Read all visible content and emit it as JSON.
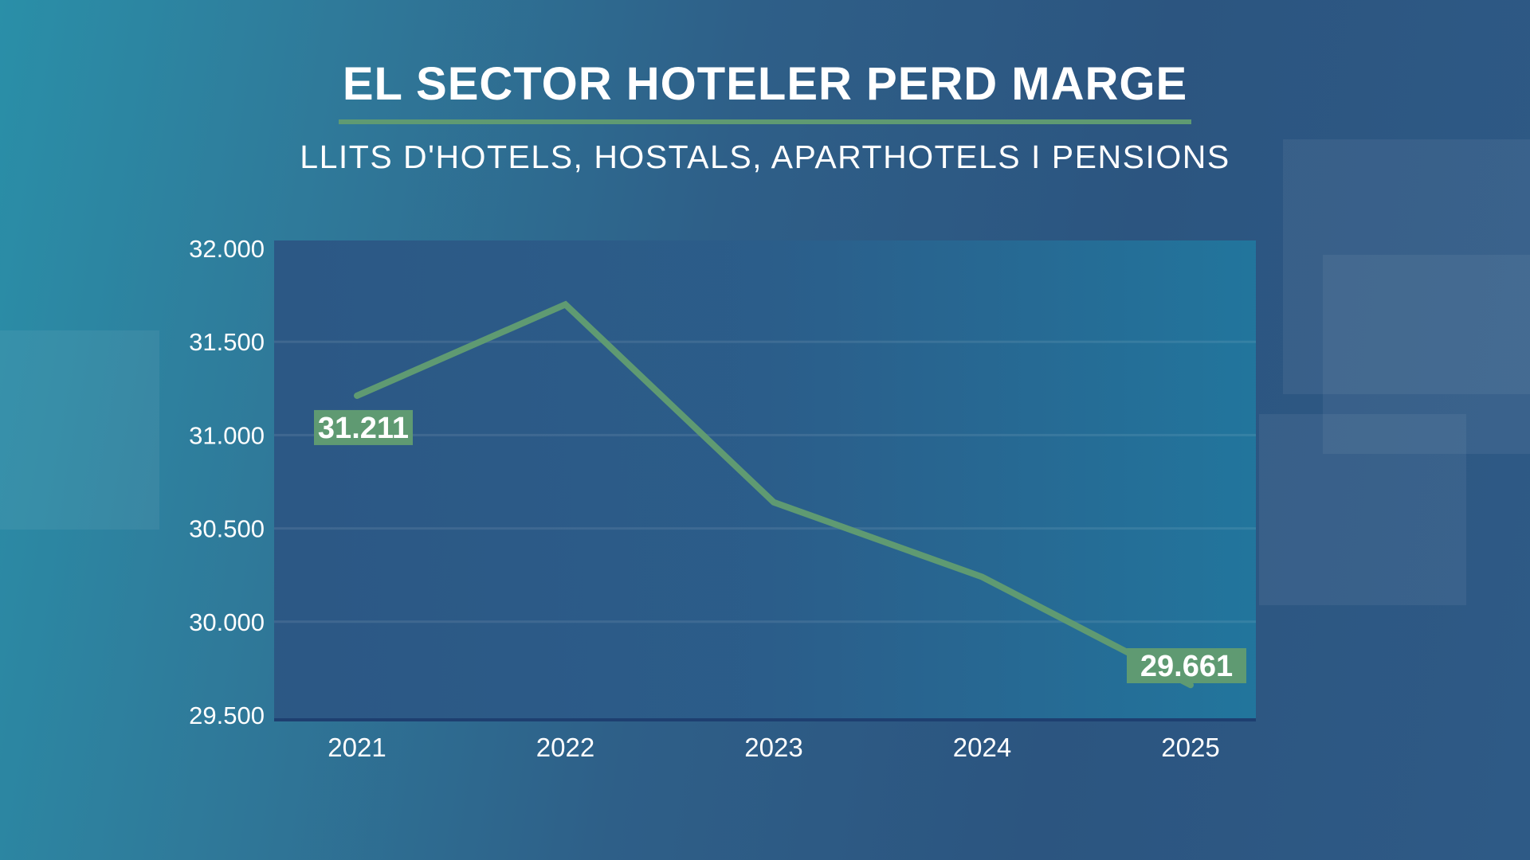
{
  "title": "EL SECTOR HOTELER PERD MARGE",
  "subtitle": "LLITS D'HOTELS, HOSTALS, APARTHOTELS I PENSIONS",
  "colors": {
    "line": "#5f9a72",
    "label_bg": "#5f9a72",
    "plot_bg": "#2a5a88"
  },
  "chart_data": {
    "type": "line",
    "title": "EL SECTOR HOTELER PERD MARGE",
    "subtitle": "LLITS D'HOTELS, HOSTALS, APARTHOTELS I PENSIONS",
    "categories": [
      "2021",
      "2022",
      "2023",
      "2024",
      "2025"
    ],
    "values": [
      31211,
      31700,
      30640,
      30240,
      29661
    ],
    "ylim": [
      29500,
      32000
    ],
    "yticks": [
      32000,
      31500,
      31000,
      30500,
      30000,
      29500
    ],
    "ytick_labels": [
      "32.000",
      "31.500",
      "31.000",
      "30.500",
      "30.000",
      "29.500"
    ],
    "data_labels": [
      {
        "category": "2021",
        "text": "31.211"
      },
      {
        "category": "2025",
        "text": "29.661"
      }
    ],
    "grid": true,
    "legend": "none"
  }
}
